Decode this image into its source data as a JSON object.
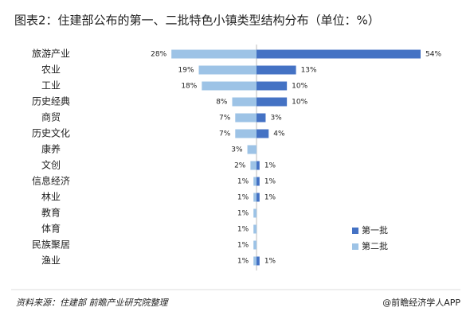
{
  "chart_data": {
    "type": "butterfly",
    "title": "图表2：住建部公布的第一、二批特色小镇类型结构分布（单位：%）",
    "source": "资料来源：住建部 前瞻产业研究院整理",
    "brand": "@前瞻经济学人APP",
    "categories": [
      "旅游产业",
      "农业",
      "工业",
      "历史经典",
      "商贸",
      "历史文化",
      "康养",
      "文创",
      "信息经济",
      "林业",
      "教育",
      "体育",
      "民族聚居",
      "渔业"
    ],
    "series": [
      {
        "name": "第一批",
        "color": "#4472c4",
        "side": "right",
        "values": [
          54,
          13,
          10,
          10,
          3,
          4,
          null,
          1,
          1,
          1,
          null,
          null,
          null,
          1
        ],
        "value_labels": [
          "54%",
          "13%",
          "10%",
          "10%",
          "3%",
          "4%",
          null,
          "1%",
          "1%",
          "1%",
          null,
          null,
          null,
          "1%"
        ]
      },
      {
        "name": "第二批",
        "color": "#9dc3e6",
        "side": "left",
        "values": [
          28,
          19,
          18,
          8,
          7,
          7,
          3,
          2,
          1,
          1,
          1,
          1,
          1,
          1
        ],
        "value_labels": [
          "28%",
          "19%",
          "18%",
          "8%",
          "7%",
          "7%",
          "3%",
          "2%",
          "1%",
          "1%",
          "1%",
          "1%",
          "1%",
          "1%"
        ]
      }
    ],
    "legend": "lower right"
  }
}
